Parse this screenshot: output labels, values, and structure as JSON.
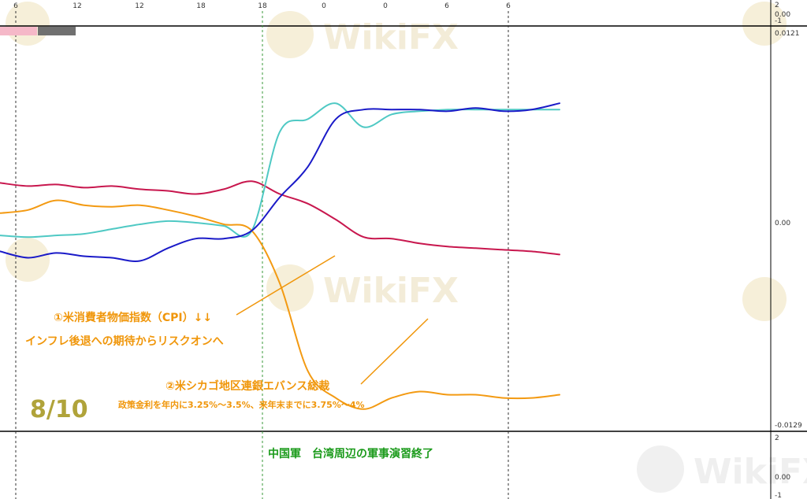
{
  "top_axis": {
    "tick_labels": [
      "6",
      "12",
      "12",
      "18",
      "18",
      "0",
      "0",
      "6",
      "6"
    ],
    "top_right_labels": [
      "2",
      "0.00",
      "-1"
    ]
  },
  "upper_panel": {
    "right_axis_labels": [
      "0.0121",
      "0.00",
      "-0.0129"
    ],
    "bars": [
      {
        "color": "#f5b8c8"
      },
      {
        "color": "#707070"
      }
    ]
  },
  "lower_panel": {
    "right_axis_labels": [
      "2",
      "0.00",
      "-1"
    ],
    "annotation": "中国軍　台湾周辺の軍事演習終了"
  },
  "watermark": {
    "text": "WikiFX"
  },
  "annotations": {
    "cpi_line1": "①米消費者物価指数（CPI）↓↓",
    "cpi_line2": "インフレ後退への期待からリスクオンへ",
    "evans_line1": "②米シカゴ地区連銀エバンス総裁",
    "evans_line2": "政策金利を年内に3.25%～3.5%、来年末までに3.75%～4%",
    "date": "8/10"
  },
  "chart_data": {
    "type": "line",
    "title": "",
    "ylim": [
      -0.0129,
      0.0121
    ],
    "grid": "vertical dashed session lines",
    "x": [
      0,
      5,
      10,
      15,
      20,
      25,
      30,
      35,
      40,
      45,
      50,
      55,
      60,
      65,
      70,
      75,
      80,
      85,
      90,
      95,
      100
    ],
    "series": [
      {
        "color": "#c8174e",
        "values": [
          0.0023,
          0.0021,
          0.0022,
          0.002,
          0.0021,
          0.0019,
          0.0018,
          0.0016,
          0.0019,
          0.0024,
          0.0016,
          0.001,
          0.0,
          -0.0011,
          -0.0012,
          -0.0015,
          -0.0017,
          -0.0018,
          -0.0019,
          -0.002,
          -0.0022
        ]
      },
      {
        "color": "#f39a12",
        "values": [
          0.0004,
          0.0006,
          0.0012,
          0.0009,
          0.0008,
          0.0009,
          0.0006,
          0.0002,
          -0.0003,
          -0.0007,
          -0.004,
          -0.0095,
          -0.0112,
          -0.0119,
          -0.0112,
          -0.0108,
          -0.011,
          -0.011,
          -0.0112,
          -0.0112,
          -0.011
        ]
      },
      {
        "color": "#4fc9c4",
        "values": [
          -0.001,
          -0.0011,
          -0.001,
          -0.0009,
          -0.0006,
          -0.0003,
          -0.0001,
          -0.0002,
          -0.0004,
          -0.0007,
          0.0055,
          0.0063,
          0.0073,
          0.0058,
          0.0066,
          0.0068,
          0.0069,
          0.0069,
          0.0069,
          0.0069,
          0.0069
        ]
      },
      {
        "color": "#1a1ac8",
        "values": [
          -0.002,
          -0.0024,
          -0.0021,
          -0.0023,
          -0.0024,
          -0.0026,
          -0.0018,
          -0.0012,
          -0.0012,
          -0.0007,
          0.0014,
          0.0033,
          0.0063,
          0.0069,
          0.0069,
          0.0069,
          0.0068,
          0.007,
          0.0068,
          0.0069,
          0.0073
        ]
      }
    ]
  }
}
